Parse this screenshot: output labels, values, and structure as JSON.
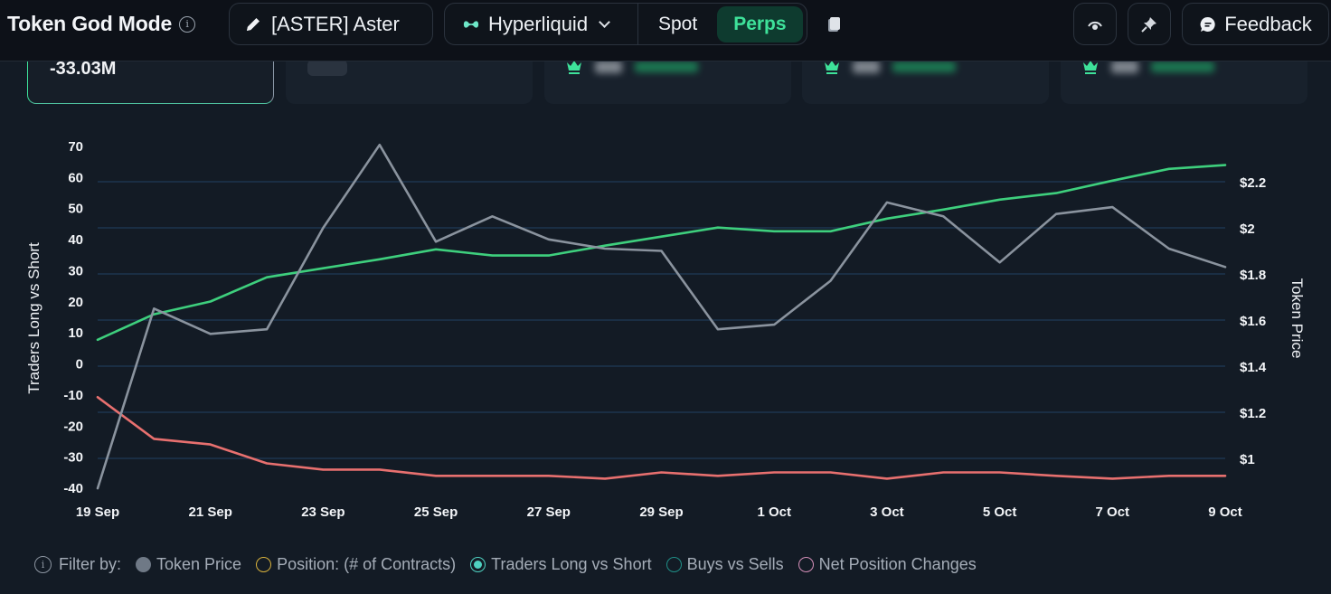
{
  "header": {
    "title": "Token God Mode",
    "token_label": "[ASTER] Aster",
    "chain_label": "Hyperliquid",
    "market_tabs": [
      {
        "label": "Spot",
        "active": false
      },
      {
        "label": "Perps",
        "active": true
      }
    ],
    "feedback_label": "Feedback"
  },
  "cards": [
    {
      "value": "-33.03M",
      "selected": true
    },
    {
      "value": "",
      "loading": true
    },
    {
      "value": "",
      "blurred": true,
      "icon": "crown-icon"
    },
    {
      "value": "",
      "blurred": true,
      "icon": "crown-icon"
    },
    {
      "value": "",
      "blurred": true,
      "icon": "crown-icon"
    }
  ],
  "colors": {
    "accent": "#3ee29a",
    "token_price": "#8a939e",
    "traders_long_short": "#3ecf7d",
    "short_line": "#e8706f",
    "gridline": "#1f3a57",
    "position": "#d9b23c",
    "buys_sells": "#1f8f87",
    "net_position": "#d48fb8"
  },
  "legend": {
    "filter_label": "Filter by:",
    "items": [
      {
        "label": "Token Price",
        "style": "filled",
        "color": "#6f7986"
      },
      {
        "label": "Position: (# of Contracts)",
        "style": "outline",
        "color": "#d9b23c"
      },
      {
        "label": "Traders Long vs Short",
        "style": "selected",
        "color": "#4fd1c0"
      },
      {
        "label": "Buys vs Sells",
        "style": "outline",
        "color": "#1f8f87"
      },
      {
        "label": "Net Position Changes",
        "style": "outline",
        "color": "#d48fb8"
      }
    ]
  },
  "chart_data": {
    "type": "line",
    "title": "",
    "xlabel": "",
    "ylabel": "Traders Long vs Short",
    "y2label": "Token Price",
    "x": [
      "19 Sep",
      "20 Sep",
      "21 Sep",
      "22 Sep",
      "23 Sep",
      "24 Sep",
      "25 Sep",
      "26 Sep",
      "27 Sep",
      "28 Sep",
      "29 Sep",
      "30 Sep",
      "1 Oct",
      "2 Oct",
      "3 Oct",
      "4 Oct",
      "5 Oct",
      "6 Oct",
      "7 Oct",
      "8 Oct",
      "9 Oct"
    ],
    "x_ticks": [
      "19 Sep",
      "21 Sep",
      "23 Sep",
      "25 Sep",
      "27 Sep",
      "29 Sep",
      "1 Oct",
      "3 Oct",
      "5 Oct",
      "7 Oct",
      "9 Oct"
    ],
    "y_ticks": [
      70,
      60,
      50,
      40,
      30,
      20,
      10,
      0,
      -10,
      -20,
      -30,
      -40
    ],
    "y2_ticks": [
      "$2.2",
      "$2",
      "$1.8",
      "$1.6",
      "$1.4",
      "$1.2",
      "$1"
    ],
    "ylim": [
      -40,
      70
    ],
    "y2lim": [
      0.87,
      2.37
    ],
    "grid": true,
    "legend_position": "bottom",
    "series": [
      {
        "name": "Traders Long",
        "axis": "left",
        "color": "#3ecf7d",
        "values": [
          7.5,
          15.7,
          19.8,
          27.6,
          30.5,
          33.4,
          36.6,
          34.6,
          34.6,
          37.8,
          40.7,
          43.6,
          42.4,
          42.4,
          46.5,
          49.4,
          52.6,
          54.7,
          58.7,
          62.5,
          63.7
        ]
      },
      {
        "name": "Traders Short",
        "axis": "left",
        "color": "#e8706f",
        "values": [
          -11.0,
          -24.4,
          -26.2,
          -32.3,
          -34.3,
          -34.3,
          -36.3,
          -36.3,
          -36.3,
          -37.2,
          -35.2,
          -36.3,
          -35.2,
          -35.2,
          -37.2,
          -35.2,
          -35.2,
          -36.3,
          -37.2,
          -36.3,
          -36.3
        ]
      },
      {
        "name": "Token Price",
        "axis": "right",
        "color": "#8a939e",
        "values": [
          0.87,
          1.65,
          1.54,
          1.56,
          2.0,
          2.36,
          1.94,
          2.05,
          1.95,
          1.91,
          1.9,
          1.56,
          1.58,
          1.77,
          2.11,
          2.05,
          1.85,
          2.06,
          2.09,
          1.91,
          1.83
        ]
      }
    ]
  }
}
